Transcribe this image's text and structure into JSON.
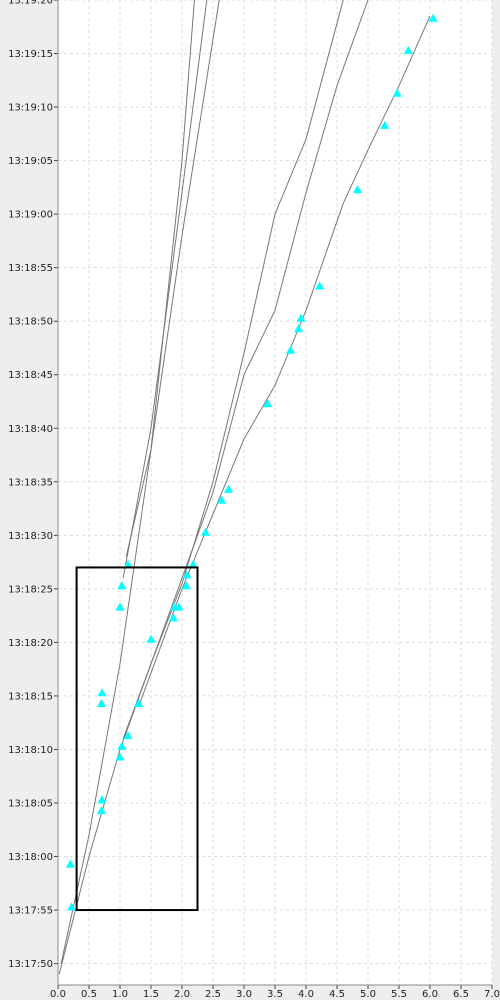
{
  "chart_data": {
    "type": "scatter",
    "xlim": [
      0.0,
      7.0
    ],
    "ylim": [
      "13:17:48",
      "13:19:20"
    ],
    "x_ticks": [
      "0.0",
      "0.5",
      "1.0",
      "1.5",
      "2.0",
      "2.5",
      "3.0",
      "3.5",
      "4.0",
      "4.5",
      "5.0",
      "5.5",
      "6.0",
      "6.5",
      "7.0"
    ],
    "y_ticks": [
      "13:17:50",
      "13:17:55",
      "13:18:00",
      "13:18:05",
      "13:18:10",
      "13:18:15",
      "13:18:20",
      "13:18:25",
      "13:18:30",
      "13:18:35",
      "13:18:40",
      "13:18:45",
      "13:18:50",
      "13:18:55",
      "13:19:00",
      "13:19:05",
      "13:19:10",
      "13:19:15",
      "13:19:20"
    ],
    "grid": true,
    "colors": {
      "points": "#00ffff",
      "lines": "#777777",
      "box": "#000000",
      "grid": "#dddddd",
      "plot_bg": "#ffffff",
      "page_bg": "#eeeeee"
    },
    "points": [
      {
        "x": 0.2,
        "y": "13:17:59.3"
      },
      {
        "x": 0.22,
        "y": "13:17:55.3"
      },
      {
        "x": 0.7,
        "y": "13:18:04.3"
      },
      {
        "x": 0.71,
        "y": "13:18:05.3"
      },
      {
        "x": 0.7,
        "y": "13:18:14.3"
      },
      {
        "x": 0.71,
        "y": "13:18:15.3"
      },
      {
        "x": 1.0,
        "y": "13:18:09.3"
      },
      {
        "x": 1.03,
        "y": "13:18:10.3"
      },
      {
        "x": 1.13,
        "y": "13:18:11.3"
      },
      {
        "x": 1.3,
        "y": "13:18:14.3"
      },
      {
        "x": 1.5,
        "y": "13:18:20.3"
      },
      {
        "x": 1.0,
        "y": "13:18:23.3"
      },
      {
        "x": 1.03,
        "y": "13:18:25.3"
      },
      {
        "x": 1.13,
        "y": "13:18:27.3"
      },
      {
        "x": 1.86,
        "y": "13:18:22.3"
      },
      {
        "x": 1.88,
        "y": "13:18:23.3"
      },
      {
        "x": 1.95,
        "y": "13:18:23.3"
      },
      {
        "x": 2.07,
        "y": "13:18:25.3"
      },
      {
        "x": 2.08,
        "y": "13:18:26.3"
      },
      {
        "x": 2.18,
        "y": "13:18:27.3"
      },
      {
        "x": 2.38,
        "y": "13:18:30.3"
      },
      {
        "x": 2.64,
        "y": "13:18:33.3"
      },
      {
        "x": 2.75,
        "y": "13:18:34.3"
      },
      {
        "x": 3.38,
        "y": "13:18:42.3"
      },
      {
        "x": 3.75,
        "y": "13:18:47.3"
      },
      {
        "x": 3.88,
        "y": "13:18:49.3"
      },
      {
        "x": 3.92,
        "y": "13:18:50.3"
      },
      {
        "x": 4.22,
        "y": "13:18:53.3"
      },
      {
        "x": 4.83,
        "y": "13:19:02.3"
      },
      {
        "x": 5.27,
        "y": "13:19:08.3"
      },
      {
        "x": 5.47,
        "y": "13:19:11.3"
      },
      {
        "x": 5.65,
        "y": "13:19:15.3"
      },
      {
        "x": 6.05,
        "y": "13:19:18.3"
      }
    ],
    "lines": [
      {
        "points": [
          [
            0.05,
            "13:17:50.0"
          ],
          [
            0.5,
            "13:18:02.0"
          ],
          [
            1.0,
            "13:18:18.0"
          ],
          [
            1.5,
            "13:18:38.0"
          ],
          [
            2.0,
            "13:19:05.0"
          ],
          [
            2.2,
            "13:19:20.0"
          ]
        ]
      },
      {
        "points": [
          [
            1.05,
            "13:18:26.0"
          ],
          [
            1.5,
            "13:18:40.0"
          ],
          [
            2.0,
            "13:19:02.0"
          ],
          [
            2.4,
            "13:19:20.0"
          ]
        ]
      },
      {
        "points": [
          [
            1.1,
            "13:18:28.0"
          ],
          [
            1.5,
            "13:18:38.0"
          ],
          [
            2.0,
            "13:18:58.0"
          ],
          [
            2.6,
            "13:19:20.0"
          ]
        ]
      },
      {
        "points": [
          [
            0.02,
            "13:17:49.0"
          ],
          [
            0.5,
            "13:18:00.0"
          ],
          [
            1.0,
            "13:18:10.0"
          ],
          [
            1.5,
            "13:18:18.0"
          ],
          [
            2.0,
            "13:18:25.5"
          ],
          [
            2.5,
            "13:18:35.0"
          ],
          [
            3.0,
            "13:18:47.0"
          ],
          [
            3.5,
            "13:19:00.0"
          ],
          [
            4.0,
            "13:19:07.0"
          ],
          [
            4.6,
            "13:19:20.0"
          ]
        ]
      },
      {
        "points": [
          [
            1.05,
            "13:18:11.0"
          ],
          [
            1.5,
            "13:18:18.0"
          ],
          [
            2.0,
            "13:18:26.0"
          ],
          [
            2.5,
            "13:18:34.0"
          ],
          [
            3.0,
            "13:18:45.0"
          ],
          [
            3.5,
            "13:18:51.0"
          ],
          [
            4.0,
            "13:19:02.0"
          ],
          [
            4.5,
            "13:19:12.0"
          ],
          [
            5.0,
            "13:19:20.0"
          ]
        ]
      },
      {
        "points": [
          [
            1.3,
            "13:18:14.0"
          ],
          [
            2.0,
            "13:18:25.0"
          ],
          [
            2.5,
            "13:18:32.0"
          ],
          [
            3.0,
            "13:18:39.0"
          ],
          [
            3.5,
            "13:18:44.0"
          ],
          [
            4.0,
            "13:18:51.0"
          ],
          [
            4.6,
            "13:19:01.0"
          ],
          [
            5.0,
            "13:19:06.0"
          ],
          [
            5.5,
            "13:19:12.0"
          ],
          [
            6.0,
            "13:19:18.5"
          ]
        ]
      }
    ],
    "selection_box": {
      "x": [
        0.3,
        2.25
      ],
      "y": [
        "13:17:55.0",
        "13:18:27.0"
      ]
    }
  }
}
